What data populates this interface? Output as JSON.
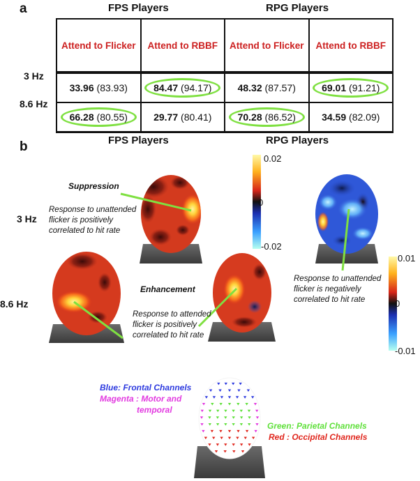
{
  "panel_a": {
    "letter": "a",
    "groups": [
      "FPS Players",
      "RPG Players"
    ],
    "columns": [
      "Attend to Flicker",
      "Attend to RBBF",
      "Attend to Flicker",
      "Attend to RBBF"
    ],
    "rows": [
      {
        "label": "3 Hz",
        "cells": [
          {
            "value": "33.96",
            "paren": "(83.93)",
            "highlight": false
          },
          {
            "value": "84.47",
            "paren": "(94.17)",
            "highlight": true
          },
          {
            "value": "48.32",
            "paren": "(87.57)",
            "highlight": false
          },
          {
            "value": "69.01",
            "paren": "(91.21)",
            "highlight": true
          }
        ]
      },
      {
        "label": "8.6 Hz",
        "cells": [
          {
            "value": "66.28",
            "paren": "(80.55)",
            "highlight": true
          },
          {
            "value": "29.77",
            "paren": "(80.41)",
            "highlight": false
          },
          {
            "value": "70.28",
            "paren": "(86.52)",
            "highlight": true
          },
          {
            "value": "34.59",
            "paren": "(82.09)",
            "highlight": false
          }
        ]
      }
    ]
  },
  "panel_b": {
    "letter": "b",
    "groups": [
      "FPS Players",
      "RPG Players"
    ],
    "row_labels": [
      "3 Hz",
      "8.6  Hz"
    ],
    "annotations": {
      "suppression_title": "Suppression",
      "suppression_text": [
        "Response to unattended",
        "flicker is positively",
        "correlated to hit rate"
      ],
      "enhancement_title": "Enhancement",
      "enhancement_text": [
        "Response to attended",
        "flicker is positively",
        "correlated to  hit rate"
      ],
      "negative_text": [
        "Response to unattended",
        "flicker is negatively",
        "correlated to hit rate"
      ]
    },
    "colorbar_fps": {
      "max": "0.02",
      "mid": "0",
      "min": "-0.02"
    },
    "colorbar_rpg": {
      "max": "0.01",
      "mid": "0",
      "min": "-0.01"
    }
  },
  "legend": {
    "blue_line": "Blue:  Frontal Channels",
    "magenta_line1": "Magenta : Motor and",
    "magenta_line2": "temporal",
    "green_line": "Green:  Parietal Channels",
    "red_line": "Red : Occipital Channels"
  },
  "colors": {
    "header_red": "#cc1f1f",
    "highlight_green": "#7fe041",
    "arrow_green": "#7fe041",
    "legend_blue": "#2d3adf",
    "legend_magenta": "#e23ae0",
    "legend_green": "#5fe03a",
    "legend_red": "#e0261d"
  }
}
